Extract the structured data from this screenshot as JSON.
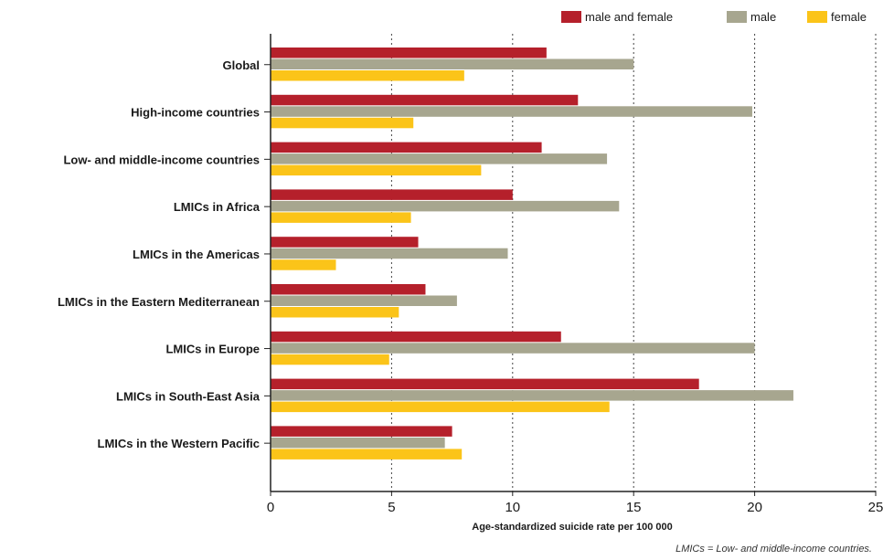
{
  "chart_data": {
    "type": "bar",
    "orientation": "horizontal",
    "categories": [
      "Global",
      "High-income countries",
      "Low- and middle-income countries",
      "LMICs in Africa",
      "LMICs in the Americas",
      "LMICs in the Eastern Mediterranean",
      "LMICs in Europe",
      "LMICs in South-East Asia",
      "LMICs in the Western Pacific"
    ],
    "series": [
      {
        "name": "male and female",
        "color": "#b5202b",
        "values": [
          11.4,
          12.7,
          11.2,
          10.0,
          6.1,
          6.4,
          12.0,
          17.7,
          7.5
        ]
      },
      {
        "name": "male",
        "color": "#a7a68f",
        "values": [
          15.0,
          19.9,
          13.9,
          14.4,
          9.8,
          7.7,
          20.0,
          21.6,
          7.2
        ]
      },
      {
        "name": "female",
        "color": "#fbc419",
        "values": [
          8.0,
          5.9,
          8.7,
          5.8,
          2.7,
          5.3,
          4.9,
          14.0,
          7.9
        ]
      }
    ],
    "xlabel": "Age-standardized suicide rate per 100 000",
    "xlim": [
      0,
      25
    ],
    "xticks": [
      0,
      5,
      10,
      15,
      20,
      25
    ],
    "grid": "vertical dotted",
    "legend_position": "top-right"
  },
  "footnote": "LMICs = Low- and middle-income countries."
}
